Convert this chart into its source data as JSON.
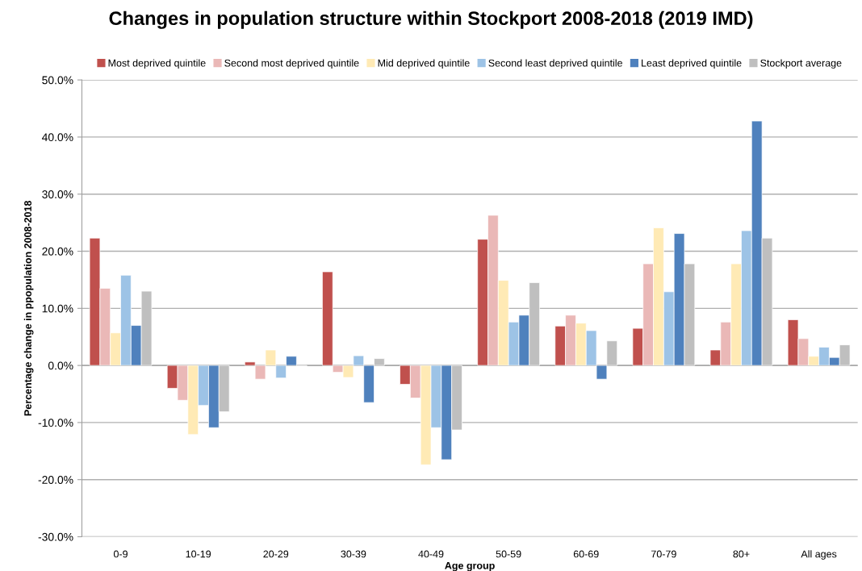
{
  "chart_data": {
    "type": "bar",
    "title": "Changes in population structure within Stockport 2008-2018 (2019 IMD)",
    "xlabel": "Age group",
    "ylabel": "Percentage change in ppopulation 2008-2018",
    "categories": [
      "0-9",
      "10-19",
      "20-29",
      "30-39",
      "40-49",
      "50-59",
      "60-69",
      "70-79",
      "80+",
      "All ages"
    ],
    "series": [
      {
        "name": "Most deprived quintile",
        "color": "#c0504d",
        "values": [
          22.3,
          -4.0,
          0.6,
          16.4,
          -3.3,
          22.1,
          6.9,
          6.5,
          2.7,
          8.0
        ]
      },
      {
        "name": "Second most deprived quintile",
        "color": "#eab8b7",
        "values": [
          13.5,
          -6.1,
          -2.4,
          -1.2,
          -5.7,
          26.3,
          8.8,
          17.8,
          7.6,
          4.7
        ]
      },
      {
        "name": "Mid deprived quintile",
        "color": "#ffeab5",
        "values": [
          5.7,
          -12.1,
          2.7,
          -2.1,
          -17.4,
          14.9,
          7.4,
          24.1,
          17.8,
          1.6
        ]
      },
      {
        "name": "Second least deprived quintile",
        "color": "#9dc3e6",
        "values": [
          15.8,
          -7.0,
          -2.2,
          1.7,
          -10.9,
          7.6,
          6.1,
          12.9,
          23.6,
          3.2
        ]
      },
      {
        "name": "Least deprived quintile",
        "color": "#4f81bd",
        "values": [
          7.0,
          -10.9,
          1.6,
          -6.5,
          -16.5,
          8.8,
          -2.4,
          23.1,
          42.8,
          1.4
        ]
      },
      {
        "name": "Stockport average",
        "color": "#bfbfbf",
        "values": [
          13.0,
          -8.1,
          -0.1,
          1.2,
          -11.3,
          14.5,
          4.3,
          17.8,
          22.3,
          3.6
        ]
      }
    ],
    "ylim": [
      -30,
      50
    ],
    "yticks": [
      {
        "value": -30,
        "label": "-30.0%"
      },
      {
        "value": -20,
        "label": "-20.0%"
      },
      {
        "value": -10,
        "label": "-10.0%"
      },
      {
        "value": 0,
        "label": "0.0%"
      },
      {
        "value": 10,
        "label": "10.0%"
      },
      {
        "value": 20,
        "label": "20.0%"
      },
      {
        "value": 30,
        "label": "30.0%"
      },
      {
        "value": 40,
        "label": "40.0%"
      },
      {
        "value": 50,
        "label": "50.0%"
      }
    ],
    "grid": "y",
    "legend": "top"
  }
}
